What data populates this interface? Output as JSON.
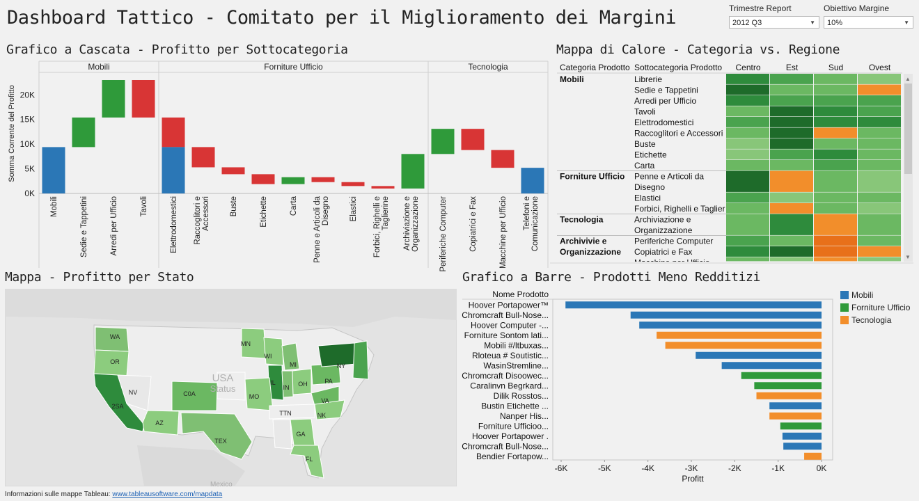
{
  "header": {
    "title": "Dashboard Tattico - Comitato per il Miglioramento dei Margini",
    "filters": [
      {
        "label": "Trimestre Report",
        "value": "2012 Q3"
      },
      {
        "label": "Obiettivo Margine",
        "value": "10%"
      }
    ]
  },
  "colors": {
    "Mobili": "#2b77b6",
    "Forniture Ufficio": "#2f9a3a",
    "Tecnologia": "#f28e2b",
    "positive": "#2f9a3a",
    "negative": "#d83535",
    "total": "#2b77b6"
  },
  "waterfall": {
    "title": "Grafico a Cascata - Profitto per Sottocategoria",
    "ylabel": "Somma Corrente del Profitto",
    "y_ticks": [
      "0K",
      "5K",
      "10K",
      "15K",
      "20K"
    ],
    "groups": [
      "Mobili",
      "Forniture Ufficio",
      "Tecnologia"
    ],
    "chart_data": {
      "type": "bar",
      "subtype": "waterfall",
      "ylim": [
        0,
        24000
      ],
      "bars": [
        {
          "group": "Mobili",
          "label": "Mobili",
          "start": 0,
          "end": 9400,
          "kind": "total"
        },
        {
          "group": "Mobili",
          "label": "Sedie e Tappetini",
          "start": 9400,
          "end": 15400,
          "kind": "up"
        },
        {
          "group": "Mobili",
          "label": "Arredi per Ufficio",
          "start": 15400,
          "end": 23000,
          "kind": "up"
        },
        {
          "group": "Mobili",
          "label": "Tavoli",
          "start": 23000,
          "end": 15400,
          "kind": "down"
        },
        {
          "group": "Forniture Ufficio",
          "label": "Elettrodomestici",
          "start": 0,
          "end": 9400,
          "kind": "total",
          "overlay": {
            "start": 15400,
            "end": 9400
          }
        },
        {
          "group": "Forniture Ufficio",
          "label": "Raccoglitori e Accessori",
          "start": 9400,
          "end": 5300,
          "kind": "down"
        },
        {
          "group": "Forniture Ufficio",
          "label": "Buste",
          "start": 5300,
          "end": 3900,
          "kind": "down"
        },
        {
          "group": "Forniture Ufficio",
          "label": "Etichette",
          "start": 3900,
          "end": 1900,
          "kind": "down"
        },
        {
          "group": "Forniture Ufficio",
          "label": "Carta",
          "start": 1900,
          "end": 3300,
          "kind": "up"
        },
        {
          "group": "Forniture Ufficio",
          "label": "Penne e Articoli da Disegno",
          "start": 3300,
          "end": 2300,
          "kind": "down"
        },
        {
          "group": "Forniture Ufficio",
          "label": "Elastici",
          "start": 2300,
          "end": 1500,
          "kind": "down"
        },
        {
          "group": "Forniture Ufficio",
          "label": "Forbici, Righelli e Taglierine",
          "start": 1500,
          "end": 1000,
          "kind": "down"
        },
        {
          "group": "Forniture Ufficio",
          "label": "Archiviazione e Organizzazione",
          "start": 1000,
          "end": 8000,
          "kind": "up"
        },
        {
          "group": "Tecnologia",
          "label": "Periferiche Computer",
          "start": 8000,
          "end": 13100,
          "kind": "up"
        },
        {
          "group": "Tecnologia",
          "label": "Copiatrici e Fax",
          "start": 13100,
          "end": 8800,
          "kind": "down"
        },
        {
          "group": "Tecnologia",
          "label": "Macchine per Ufficio",
          "start": 8800,
          "end": 5200,
          "kind": "down"
        },
        {
          "group": "Tecnologia",
          "label": "Telefoni e Comunicazione",
          "start": 0,
          "end": 5200,
          "kind": "total"
        }
      ]
    }
  },
  "heatmap": {
    "title": "Mappa di Calore - Categoria vs. Regione",
    "headers": [
      "Categoria Prodotto",
      "Sottocategoria Prodotto",
      "Centro",
      "Est",
      "Sud",
      "Ovest"
    ],
    "palette": {
      "1": "#1e6b2a",
      "2": "#2e8b3c",
      "3": "#4aa34e",
      "4": "#6bb862",
      "5": "#88c679",
      "6": "#f28e2b",
      "7": "#e8701a"
    },
    "groups": [
      {
        "category": "Mobili",
        "rows": [
          {
            "sub": "Librerie",
            "levels": [
              2,
              3,
              4,
              5
            ]
          },
          {
            "sub": "Sedie e Tappetini",
            "levels": [
              1,
              4,
              4,
              6
            ]
          },
          {
            "sub": "Arredi per Ufficio",
            "levels": [
              2,
              3,
              3,
              3
            ]
          },
          {
            "sub": "Tavoli",
            "levels": [
              4,
              1,
              2,
              3
            ]
          },
          {
            "sub": "Elettrodomestici",
            "levels": [
              3,
              1,
              2,
              2
            ]
          },
          {
            "sub": "Raccoglitori e Accessori",
            "levels": [
              4,
              1,
              6,
              4
            ]
          },
          {
            "sub": "Buste",
            "levels": [
              5,
              1,
              4,
              4
            ]
          },
          {
            "sub": "Etichette",
            "levels": [
              5,
              3,
              2,
              4
            ]
          },
          {
            "sub": "Carta",
            "levels": [
              4,
              4,
              3,
              4
            ]
          }
        ]
      },
      {
        "category": "Forniture Ufficio",
        "rows": [
          {
            "sub": "Penne e Articoli da Disegno",
            "levels": [
              1,
              6,
              4,
              5
            ],
            "tall": true
          },
          {
            "sub": "Elastici",
            "levels": [
              3,
              5,
              4,
              4
            ]
          },
          {
            "sub": "Forbici, Righelli e Taglier",
            "levels": [
              4,
              6,
              4,
              5
            ]
          }
        ]
      },
      {
        "category": "Tecnologia",
        "rows": [
          {
            "sub": "Archiviazione e Organizzazione",
            "levels": [
              4,
              2,
              6,
              4
            ],
            "tall": true
          }
        ]
      },
      {
        "category": "Archivivie e Organizzazione",
        "rows": [
          {
            "sub": "Periferiche Computer",
            "levels": [
              3,
              4,
              7,
              4
            ]
          },
          {
            "sub": "Copiatrici e Fax",
            "levels": [
              2,
              1,
              7,
              6
            ]
          },
          {
            "sub": "Macchine per Ufficio",
            "levels": [
              4,
              5,
              6,
              5
            ],
            "clipped": true
          }
        ]
      }
    ]
  },
  "map": {
    "title": "Mappa - Profitto per Stato",
    "watermark": [
      "USA",
      "Status"
    ],
    "state_labels": [
      "WA",
      "OR",
      "2SA",
      "NV",
      "AZ",
      "C0A",
      "MN",
      "WI",
      "MI",
      "IL",
      "IN",
      "OH",
      "PA",
      "NY",
      "MO",
      "TTN",
      "VA",
      "NK",
      "TEX",
      "GA",
      "FL"
    ],
    "footer_text": "Informazioni sulle mappe Tableau:",
    "footer_link": "www.tableausoftware.com/mapdata"
  },
  "bar_chart": {
    "title": "Grafico a Barre - Prodotti Meno Redditizi",
    "column_header": "Nome Prodotto",
    "xlabel": "Profitt",
    "x_ticks": [
      "-6K",
      "-5K",
      "-4K",
      "-3K",
      "-2K",
      "-1K",
      "0K"
    ],
    "legend": [
      "Mobili",
      "Forniture Ufficio",
      "Tecnologia"
    ],
    "chart_data": {
      "type": "bar",
      "orientation": "horizontal",
      "xlim": [
        -6000,
        0
      ],
      "categories": [
        "Hoover Portapower™",
        "Chromcraft Bull-Nose...",
        "Hoover Computer -...",
        "Forniture Sontom lati...",
        "Mobili #/ltbuxas...",
        "Rloteua # Soutistic...",
        "WasinStremline...",
        "Chromcraft Disoowec...",
        "Caralinvn Begrkard...",
        "Dilik Rosstos...",
        "Bustin Etichette ...",
        "Nanper His...",
        "Forniture Ufficioo...",
        "Hoover Portapower .",
        "Chromcraft Bull-Nose...",
        "Bendier Fortapow..."
      ],
      "values": [
        -5900,
        -4400,
        -4200,
        -3800,
        -3600,
        -2900,
        -2300,
        -1850,
        -1550,
        -1500,
        -1200,
        -1200,
        -950,
        -900,
        -880,
        -400
      ],
      "series_of": [
        "Mobili",
        "Mobili",
        "Mobili",
        "Tecnologia",
        "Tecnologia",
        "Mobili",
        "Mobili",
        "Forniture Ufficio",
        "Forniture Ufficio",
        "Tecnologia",
        "Mobili",
        "Tecnologia",
        "Forniture Ufficio",
        "Mobili",
        "Mobili",
        "Tecnologia"
      ]
    }
  }
}
